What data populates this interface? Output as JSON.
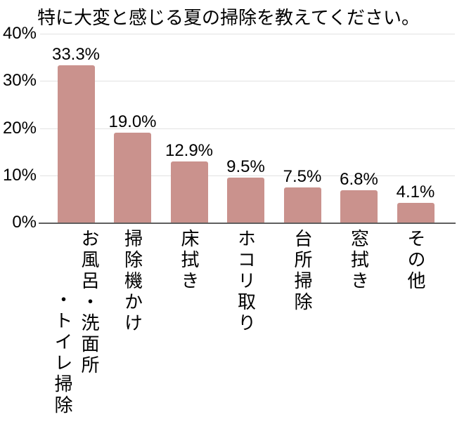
{
  "title": "特に大変と感じる夏の掃除を教えてください。",
  "chart_data": {
    "type": "bar",
    "title": "特に大変と感じる夏の掃除を教えてください。",
    "categories": [
      "お風呂・洗面所・トイレ掃除",
      "掃除機かけ",
      "床拭き",
      "ホコリ取り",
      "台所掃除",
      "窓拭き",
      "その他"
    ],
    "category_lines": [
      [
        "お風呂・洗面所",
        "・トイレ掃除"
      ],
      [
        "掃除機かけ"
      ],
      [
        "床拭き"
      ],
      [
        "ホコリ取り"
      ],
      [
        "台所掃除"
      ],
      [
        "窓拭き"
      ],
      [
        "その他"
      ]
    ],
    "values": [
      33.3,
      19.0,
      12.9,
      9.5,
      7.5,
      6.8,
      4.1
    ],
    "value_labels": [
      "33.3%",
      "19.0%",
      "12.9%",
      "9.5%",
      "7.5%",
      "6.8%",
      "4.1%"
    ],
    "xlabel": "",
    "ylabel": "",
    "y_ticks": [
      {
        "value": 40,
        "label": "40%"
      },
      {
        "value": 30,
        "label": "30%"
      },
      {
        "value": 20,
        "label": "20%"
      },
      {
        "value": 10,
        "label": "10%"
      },
      {
        "value": 0,
        "label": "0%"
      }
    ],
    "ylim": [
      0,
      40
    ],
    "grid": true,
    "legend": false,
    "orientation": "vertical",
    "label_position_x": "vertical-below-axis",
    "colors": {
      "bar_fill": "#ca928d",
      "gridline": "#e2e2e2",
      "axis_line": "#5f5f5f",
      "text": "#000000",
      "background": "#ffffff"
    }
  }
}
